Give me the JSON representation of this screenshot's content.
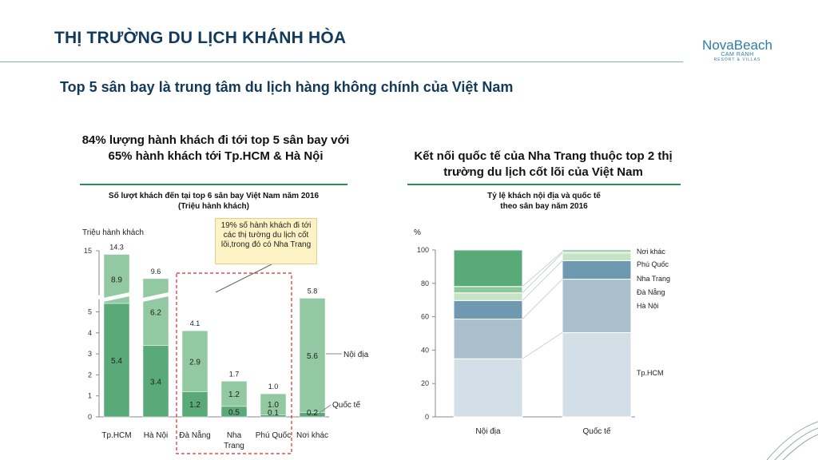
{
  "header": {
    "title": "THỊ TRƯỜNG DU LỊCH KHÁNH HÒA",
    "subtitle": "Top 5 sân bay là trung tâm du lịch hàng không chính của Việt Nam"
  },
  "logo": {
    "name": "NovaBeach",
    "line1": "CAM RANH",
    "line2": "RESORT & VILLAS"
  },
  "left_panel": {
    "heading": "84% lượng hành khách đi tới top 5 sân bay với 65% hành khách tới Tp.HCM & Hà Nội",
    "callout": "19% số hành khách đi tới các thị tường du lịch cốt lõi,trong đó có Nha Trang"
  },
  "right_panel": {
    "heading": "Kết nối quốc tế của Nha Trang thuộc top 2 thị trường du lịch cốt lõi của Việt Nam"
  },
  "chart_data": [
    {
      "type": "bar",
      "title": "Số lượt khách đến tại top 6 sân bay Việt Nam năm 2016",
      "subtitle": "(Triệu hành khách)",
      "ylabel": "Triệu hành khách",
      "categories": [
        "Tp.HCM",
        "Hà Nội",
        "Đà Nẵng",
        "Nha Trang",
        "Phú Quốc",
        "Nơi khác"
      ],
      "series": [
        {
          "name": "Quốc tế",
          "values": [
            5.4,
            3.4,
            1.2,
            0.5,
            0.1,
            0.2
          ],
          "color": "#5aa978"
        },
        {
          "name": "Nội địa",
          "values": [
            8.9,
            6.2,
            2.9,
            1.2,
            1.0,
            5.6
          ],
          "color": "#92c9a2"
        }
      ],
      "totals": [
        "14.3",
        "9.6",
        "4.1",
        "1.7",
        "1.0",
        "5.8"
      ],
      "yticks": [
        "0",
        "1",
        "2",
        "3",
        "4",
        "5",
        "15"
      ],
      "axis_break": true,
      "highlight": [
        "Đà Nẵng",
        "Nha Trang",
        "Phú Quốc"
      ]
    },
    {
      "type": "bar",
      "stacked": true,
      "percent": true,
      "title": "Tỷ lệ khách nội địa và quốc tế",
      "subtitle": "theo sân bay năm 2016",
      "ylabel": "%",
      "categories": [
        "Nội địa",
        "Quốc tế"
      ],
      "ylim": [
        0,
        100
      ],
      "yticks": [
        "0",
        "20",
        "40",
        "60",
        "80",
        "100"
      ],
      "series": [
        {
          "name": "Tp.HCM",
          "values": [
            34.8,
            50.5
          ],
          "color": "#d3dfe6"
        },
        {
          "name": "Hà Nội",
          "values": [
            23.8,
            32.0
          ],
          "color": "#a9c0cc"
        },
        {
          "name": "Đà Nẵng",
          "values": [
            11.1,
            11.1
          ],
          "color": "#6f98b1"
        },
        {
          "name": "Nha Trang",
          "values": [
            4.6,
            4.6
          ],
          "color": "#c5e3c5"
        },
        {
          "name": "Phú Quốc",
          "values": [
            3.8,
            0.8
          ],
          "color": "#8ec79c"
        },
        {
          "name": "Nơi khác",
          "values": [
            21.9,
            1.0
          ],
          "color": "#5aa978"
        }
      ]
    }
  ]
}
